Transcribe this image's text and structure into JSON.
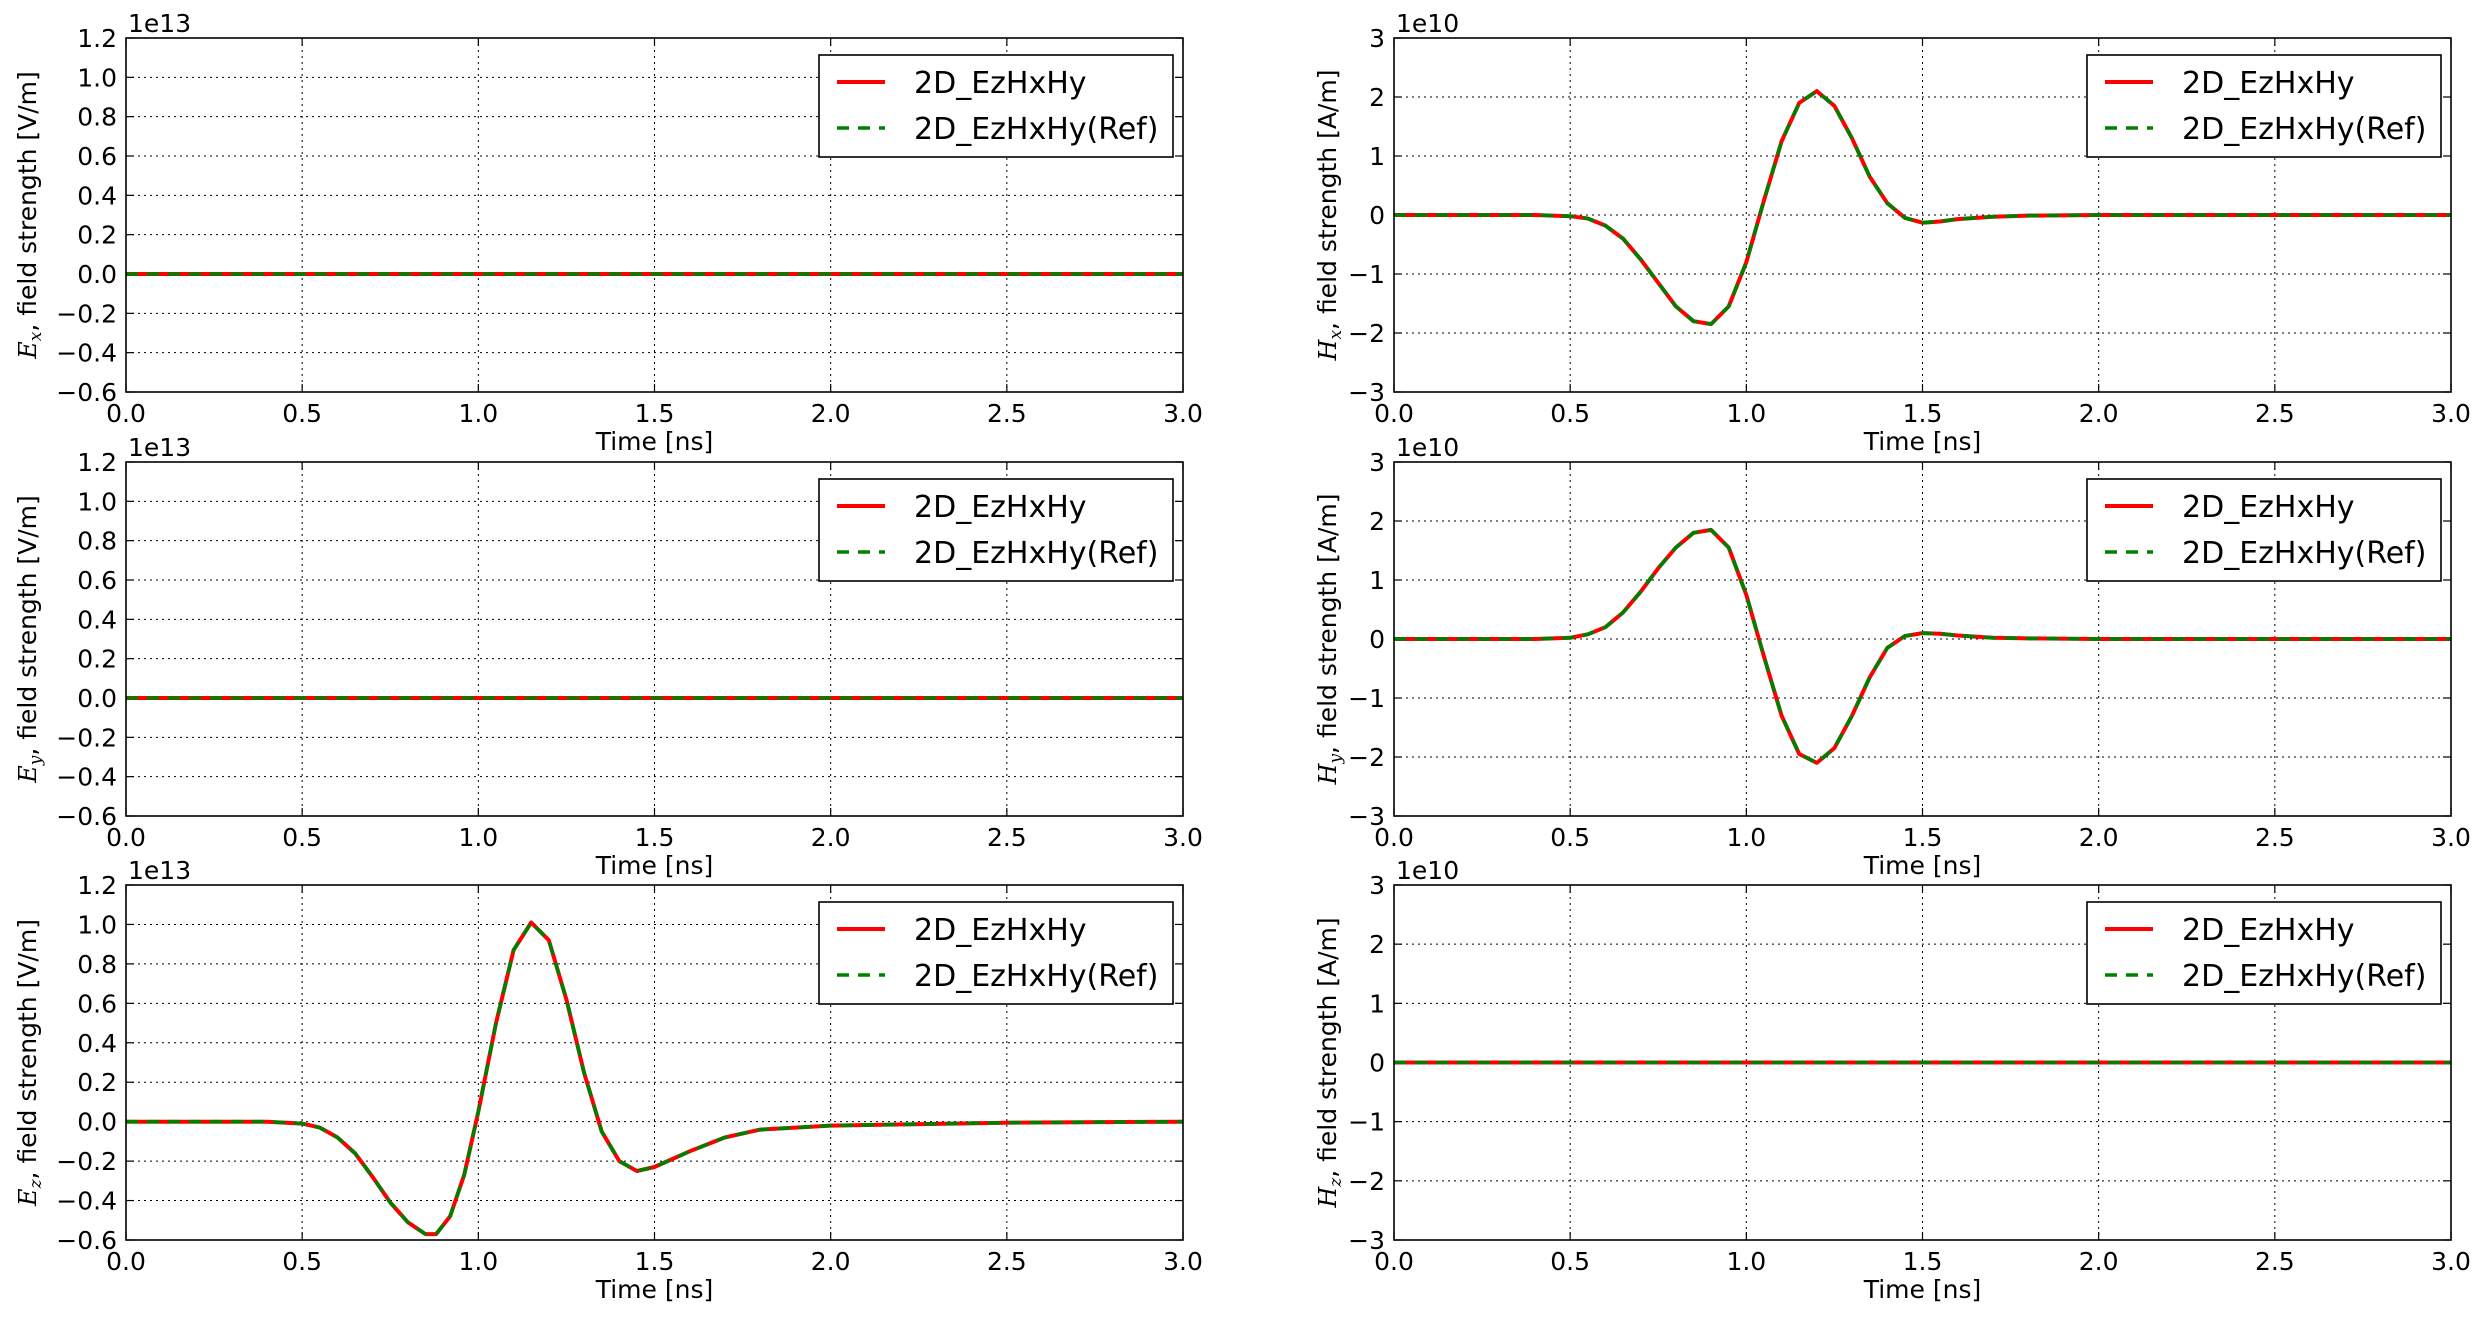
{
  "figure": {
    "background": "#ffffff"
  },
  "chart_data": [
    {
      "type": "line",
      "xlabel": "Time [ns]",
      "ylabel": {
        "symbol": "E",
        "subscript": "x",
        "text": ", field strength [V/m]"
      },
      "offset_text": "1e13",
      "xlim": [
        0.0,
        3.0
      ],
      "ylim": [
        -0.6,
        1.2
      ],
      "xticks": [
        "0.0",
        "0.5",
        "1.0",
        "1.5",
        "2.0",
        "2.5",
        "3.0"
      ],
      "yticks": [
        "−0.6",
        "−0.4",
        "−0.2",
        "0.0",
        "0.2",
        "0.4",
        "0.6",
        "0.8",
        "1.0",
        "1.2"
      ],
      "grid": true,
      "legend_position": "upper-right",
      "x": [
        0.0,
        3.0
      ],
      "series": [
        {
          "name": "2D_EzHxHy",
          "style": "solid",
          "color": "#ff0000",
          "values": [
            0.0,
            0.0
          ]
        },
        {
          "name": "2D_EzHxHy(Ref)",
          "style": "dashed",
          "color": "#008000",
          "values": [
            0.0,
            0.0
          ]
        }
      ]
    },
    {
      "type": "line",
      "xlabel": "Time [ns]",
      "ylabel": {
        "symbol": "H",
        "subscript": "x",
        "text": ", field strength [A/m]"
      },
      "offset_text": "1e10",
      "xlim": [
        0.0,
        3.0
      ],
      "ylim": [
        -3,
        3
      ],
      "xticks": [
        "0.0",
        "0.5",
        "1.0",
        "1.5",
        "2.0",
        "2.5",
        "3.0"
      ],
      "yticks": [
        "−3",
        "−2",
        "−1",
        "0",
        "1",
        "2",
        "3"
      ],
      "grid": true,
      "legend_position": "upper-right",
      "x": [
        0.0,
        0.4,
        0.5,
        0.55,
        0.6,
        0.65,
        0.7,
        0.75,
        0.8,
        0.85,
        0.9,
        0.95,
        1.0,
        1.05,
        1.1,
        1.15,
        1.2,
        1.25,
        1.3,
        1.35,
        1.4,
        1.45,
        1.5,
        1.55,
        1.6,
        1.7,
        1.8,
        2.0,
        3.0
      ],
      "series": [
        {
          "name": "2D_EzHxHy",
          "style": "solid",
          "color": "#ff0000",
          "values": [
            0.0,
            0.0,
            -0.02,
            -0.06,
            -0.18,
            -0.4,
            -0.75,
            -1.15,
            -1.55,
            -1.8,
            -1.85,
            -1.55,
            -0.8,
            0.25,
            1.25,
            1.9,
            2.1,
            1.85,
            1.3,
            0.65,
            0.2,
            -0.05,
            -0.13,
            -0.11,
            -0.07,
            -0.03,
            -0.01,
            0.0,
            0.0
          ]
        },
        {
          "name": "2D_EzHxHy(Ref)",
          "style": "dashed",
          "color": "#008000",
          "values": [
            0.0,
            0.0,
            -0.02,
            -0.06,
            -0.18,
            -0.4,
            -0.75,
            -1.15,
            -1.55,
            -1.8,
            -1.85,
            -1.55,
            -0.8,
            0.25,
            1.25,
            1.9,
            2.1,
            1.85,
            1.3,
            0.65,
            0.2,
            -0.05,
            -0.13,
            -0.11,
            -0.07,
            -0.03,
            -0.01,
            0.0,
            0.0
          ]
        }
      ]
    },
    {
      "type": "line",
      "xlabel": "Time [ns]",
      "ylabel": {
        "symbol": "E",
        "subscript": "y",
        "text": ", field strength [V/m]"
      },
      "offset_text": "1e13",
      "xlim": [
        0.0,
        3.0
      ],
      "ylim": [
        -0.6,
        1.2
      ],
      "xticks": [
        "0.0",
        "0.5",
        "1.0",
        "1.5",
        "2.0",
        "2.5",
        "3.0"
      ],
      "yticks": [
        "−0.6",
        "−0.4",
        "−0.2",
        "0.0",
        "0.2",
        "0.4",
        "0.6",
        "0.8",
        "1.0",
        "1.2"
      ],
      "grid": true,
      "legend_position": "upper-right",
      "x": [
        0.0,
        3.0
      ],
      "series": [
        {
          "name": "2D_EzHxHy",
          "style": "solid",
          "color": "#ff0000",
          "values": [
            0.0,
            0.0
          ]
        },
        {
          "name": "2D_EzHxHy(Ref)",
          "style": "dashed",
          "color": "#008000",
          "values": [
            0.0,
            0.0
          ]
        }
      ]
    },
    {
      "type": "line",
      "xlabel": "Time [ns]",
      "ylabel": {
        "symbol": "H",
        "subscript": "y",
        "text": ", field strength [A/m]"
      },
      "offset_text": "1e10",
      "xlim": [
        0.0,
        3.0
      ],
      "ylim": [
        -3,
        3
      ],
      "xticks": [
        "0.0",
        "0.5",
        "1.0",
        "1.5",
        "2.0",
        "2.5",
        "3.0"
      ],
      "yticks": [
        "−3",
        "−2",
        "−1",
        "0",
        "1",
        "2",
        "3"
      ],
      "grid": true,
      "legend_position": "upper-right",
      "x": [
        0.0,
        0.4,
        0.5,
        0.55,
        0.6,
        0.65,
        0.7,
        0.75,
        0.8,
        0.85,
        0.9,
        0.95,
        1.0,
        1.05,
        1.1,
        1.15,
        1.2,
        1.25,
        1.3,
        1.35,
        1.4,
        1.45,
        1.5,
        1.55,
        1.6,
        1.7,
        1.8,
        2.0,
        3.0
      ],
      "series": [
        {
          "name": "2D_EzHxHy",
          "style": "solid",
          "color": "#ff0000",
          "values": [
            0.0,
            0.0,
            0.02,
            0.08,
            0.2,
            0.45,
            0.8,
            1.2,
            1.55,
            1.8,
            1.85,
            1.55,
            0.75,
            -0.3,
            -1.3,
            -1.95,
            -2.1,
            -1.85,
            -1.3,
            -0.65,
            -0.15,
            0.05,
            0.1,
            0.09,
            0.06,
            0.02,
            0.01,
            0.0,
            0.0
          ]
        },
        {
          "name": "2D_EzHxHy(Ref)",
          "style": "dashed",
          "color": "#008000",
          "values": [
            0.0,
            0.0,
            0.02,
            0.08,
            0.2,
            0.45,
            0.8,
            1.2,
            1.55,
            1.8,
            1.85,
            1.55,
            0.75,
            -0.3,
            -1.3,
            -1.95,
            -2.1,
            -1.85,
            -1.3,
            -0.65,
            -0.15,
            0.05,
            0.1,
            0.09,
            0.06,
            0.02,
            0.01,
            0.0,
            0.0
          ]
        }
      ]
    },
    {
      "type": "line",
      "xlabel": "Time [ns]",
      "ylabel": {
        "symbol": "E",
        "subscript": "z",
        "text": ", field strength [V/m]"
      },
      "offset_text": "1e13",
      "xlim": [
        0.0,
        3.0
      ],
      "ylim": [
        -0.6,
        1.2
      ],
      "xticks": [
        "0.0",
        "0.5",
        "1.0",
        "1.5",
        "2.0",
        "2.5",
        "3.0"
      ],
      "yticks": [
        "−0.6",
        "−0.4",
        "−0.2",
        "0.0",
        "0.2",
        "0.4",
        "0.6",
        "0.8",
        "1.0",
        "1.2"
      ],
      "grid": true,
      "legend_position": "upper-right",
      "x": [
        0.0,
        0.4,
        0.5,
        0.55,
        0.6,
        0.65,
        0.7,
        0.75,
        0.8,
        0.85,
        0.88,
        0.92,
        0.96,
        1.0,
        1.05,
        1.1,
        1.15,
        1.2,
        1.25,
        1.3,
        1.35,
        1.4,
        1.45,
        1.5,
        1.6,
        1.7,
        1.8,
        2.0,
        2.5,
        3.0
      ],
      "series": [
        {
          "name": "2D_EzHxHy",
          "style": "solid",
          "color": "#ff0000",
          "values": [
            0.0,
            0.0,
            -0.01,
            -0.03,
            -0.08,
            -0.16,
            -0.28,
            -0.41,
            -0.51,
            -0.57,
            -0.57,
            -0.48,
            -0.27,
            0.05,
            0.5,
            0.87,
            1.01,
            0.92,
            0.62,
            0.25,
            -0.05,
            -0.2,
            -0.25,
            -0.23,
            -0.15,
            -0.08,
            -0.04,
            -0.02,
            -0.005,
            0.0
          ]
        },
        {
          "name": "2D_EzHxHy(Ref)",
          "style": "dashed",
          "color": "#008000",
          "values": [
            0.0,
            0.0,
            -0.01,
            -0.03,
            -0.08,
            -0.16,
            -0.28,
            -0.41,
            -0.51,
            -0.57,
            -0.57,
            -0.48,
            -0.27,
            0.05,
            0.5,
            0.87,
            1.01,
            0.92,
            0.62,
            0.25,
            -0.05,
            -0.2,
            -0.25,
            -0.23,
            -0.15,
            -0.08,
            -0.04,
            -0.02,
            -0.005,
            0.0
          ]
        }
      ]
    },
    {
      "type": "line",
      "xlabel": "Time [ns]",
      "ylabel": {
        "symbol": "H",
        "subscript": "z",
        "text": ", field strength [A/m]"
      },
      "offset_text": "1e10",
      "xlim": [
        0.0,
        3.0
      ],
      "ylim": [
        -3,
        3
      ],
      "xticks": [
        "0.0",
        "0.5",
        "1.0",
        "1.5",
        "2.0",
        "2.5",
        "3.0"
      ],
      "yticks": [
        "−3",
        "−2",
        "−1",
        "0",
        "1",
        "2",
        "3"
      ],
      "grid": true,
      "legend_position": "upper-right",
      "x": [
        0.0,
        3.0
      ],
      "series": [
        {
          "name": "2D_EzHxHy",
          "style": "solid",
          "color": "#ff0000",
          "values": [
            0.0,
            0.0
          ]
        },
        {
          "name": "2D_EzHxHy(Ref)",
          "style": "dashed",
          "color": "#008000",
          "values": [
            0.0,
            0.0
          ]
        }
      ]
    }
  ]
}
